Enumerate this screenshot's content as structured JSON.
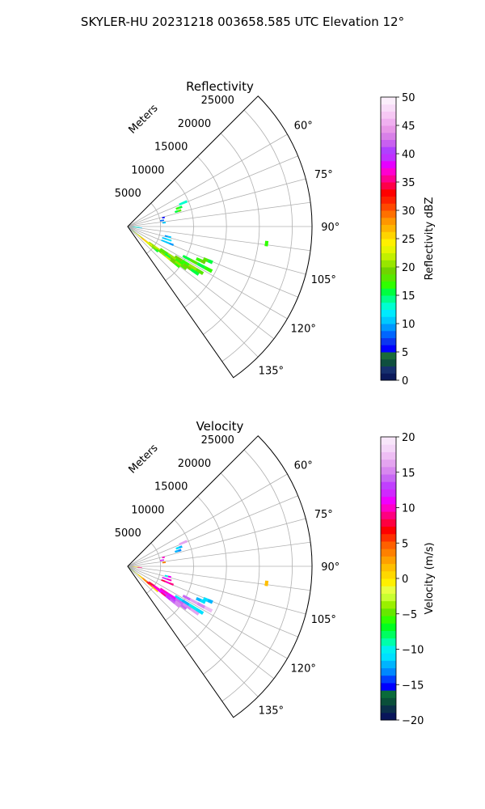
{
  "figure": {
    "suptitle": "SKYLER-HU  20231218  003658.585 UTC Elevation 12°"
  },
  "chart_data": [
    {
      "type": "heatmap",
      "projection": "polar-sector",
      "title": "Reflectivity",
      "radial_label": "Meters",
      "radial_ticks": [
        5000,
        10000,
        15000,
        20000,
        25000
      ],
      "radial_tick_labels": [
        "5000",
        "10000",
        "15000",
        "20000",
        "25000"
      ],
      "radial_range": [
        0,
        28000
      ],
      "azimuth_range_deg": [
        45,
        145
      ],
      "azimuth_ticks": [
        60,
        75,
        90,
        105,
        120,
        135
      ],
      "azimuth_tick_labels": [
        "60°",
        "75°",
        "90°",
        "105°",
        "120°",
        "135°"
      ],
      "grid": true,
      "colorbar": {
        "label": "Reflectivity dBZ",
        "vmin": 0,
        "vmax": 50,
        "ticks": [
          0,
          5,
          10,
          15,
          20,
          25,
          30,
          35,
          40,
          45,
          50
        ],
        "tick_labels": [
          "0",
          "5",
          "10",
          "15",
          "20",
          "25",
          "30",
          "35",
          "40",
          "45",
          "50"
        ]
      },
      "echoes": [
        {
          "az": 130,
          "r": [
            300,
            6000
          ],
          "values": [
            12,
            18,
            22,
            25,
            28,
            25,
            22,
            20,
            18,
            16
          ]
        },
        {
          "az": 128,
          "r": [
            2000,
            10000
          ],
          "values": [
            22,
            26,
            24,
            20,
            18,
            20,
            22,
            19,
            17
          ]
        },
        {
          "az": 126,
          "r": [
            4000,
            11000
          ],
          "values": [
            20,
            22,
            18,
            16,
            19,
            21,
            18
          ]
        },
        {
          "az": 124,
          "r": [
            6000,
            13000
          ],
          "values": [
            18,
            20,
            17,
            19,
            16
          ]
        },
        {
          "az": 122,
          "r": [
            8500,
            13500
          ],
          "values": [
            19,
            17,
            20,
            18
          ]
        },
        {
          "az": 118,
          "r": [
            9500,
            14500
          ],
          "values": [
            16,
            18,
            15,
            17
          ]
        },
        {
          "az": 115,
          "r": [
            11500,
            13000
          ],
          "values": [
            17,
            19
          ]
        },
        {
          "az": 113,
          "r": [
            12500,
            14000
          ],
          "values": [
            18,
            16
          ]
        },
        {
          "az": 112,
          "r": [
            5500,
            7500
          ],
          "values": [
            10,
            11,
            9
          ]
        },
        {
          "az": 108,
          "r": [
            5500,
            7000
          ],
          "values": [
            10,
            12
          ]
        },
        {
          "az": 104,
          "r": [
            5800,
            6800
          ],
          "values": [
            9,
            11
          ]
        },
        {
          "az": 97,
          "r": [
            21000,
            21500
          ],
          "values": [
            17
          ]
        },
        {
          "az": 84,
          "r": [
            5300,
            5800
          ],
          "values": [
            10
          ]
        },
        {
          "az": 80,
          "r": [
            5000,
            5600
          ],
          "values": [
            8
          ]
        },
        {
          "az": 73,
          "r": [
            7500,
            8500
          ],
          "values": [
            16,
            18
          ]
        },
        {
          "az": 70,
          "r": [
            7800,
            8800
          ],
          "values": [
            17,
            16
          ]
        },
        {
          "az": 67,
          "r": [
            8500,
            9800
          ],
          "values": [
            13
          ]
        },
        {
          "az": 76,
          "r": [
            5400,
            5800
          ],
          "values": [
            5
          ]
        },
        {
          "az": 92,
          "r": [
            600,
            1800
          ],
          "values": [
            12,
            13
          ]
        },
        {
          "az": 96,
          "r": [
            800,
            2200
          ],
          "values": [
            13,
            10
          ]
        }
      ]
    },
    {
      "type": "heatmap",
      "projection": "polar-sector",
      "title": "Velocity",
      "radial_label": "Meters",
      "radial_ticks": [
        5000,
        10000,
        15000,
        20000,
        25000
      ],
      "radial_tick_labels": [
        "5000",
        "10000",
        "15000",
        "20000",
        "25000"
      ],
      "radial_range": [
        0,
        28000
      ],
      "azimuth_range_deg": [
        45,
        145
      ],
      "azimuth_ticks": [
        60,
        75,
        90,
        105,
        120,
        135
      ],
      "azimuth_tick_labels": [
        "60°",
        "75°",
        "90°",
        "105°",
        "120°",
        "135°"
      ],
      "grid": true,
      "colorbar": {
        "label": "Velocity (m/s)",
        "vmin": -20,
        "vmax": 20,
        "ticks": [
          -20,
          -15,
          -10,
          -5,
          0,
          5,
          10,
          15,
          20
        ],
        "tick_labels": [
          "−20",
          "−15",
          "−10",
          "−5",
          "0",
          "5",
          "10",
          "15",
          "20"
        ]
      },
      "echoes": [
        {
          "az": 130,
          "r": [
            300,
            6000
          ],
          "values": [
            -6,
            -4,
            -2,
            0,
            2,
            4,
            6,
            3,
            1,
            0
          ]
        },
        {
          "az": 128,
          "r": [
            2000,
            10000
          ],
          "values": [
            0,
            4,
            8,
            10,
            11,
            9,
            12,
            14,
            15
          ]
        },
        {
          "az": 126,
          "r": [
            4000,
            11000
          ],
          "values": [
            8,
            10,
            11,
            12,
            13,
            15,
            14
          ]
        },
        {
          "az": 124,
          "r": [
            6000,
            13000
          ],
          "values": [
            10,
            11,
            14,
            15,
            16
          ]
        },
        {
          "az": 122,
          "r": [
            8500,
            13500
          ],
          "values": [
            -11,
            -12,
            -10,
            -11
          ]
        },
        {
          "az": 118,
          "r": [
            9500,
            14500
          ],
          "values": [
            14,
            16,
            15,
            17
          ]
        },
        {
          "az": 115,
          "r": [
            11500,
            13000
          ],
          "values": [
            -12,
            -11
          ]
        },
        {
          "az": 113,
          "r": [
            12500,
            14000
          ],
          "values": [
            -11,
            -12
          ]
        },
        {
          "az": 112,
          "r": [
            5500,
            7500
          ],
          "values": [
            8,
            10,
            9
          ]
        },
        {
          "az": 108,
          "r": [
            5500,
            7000
          ],
          "values": [
            12,
            10
          ]
        },
        {
          "az": 104,
          "r": [
            5800,
            6800
          ],
          "values": [
            -10,
            11
          ]
        },
        {
          "az": 97,
          "r": [
            21000,
            21500
          ],
          "values": [
            2
          ]
        },
        {
          "az": 84,
          "r": [
            5300,
            5800
          ],
          "values": [
            4
          ]
        },
        {
          "az": 80,
          "r": [
            5000,
            5600
          ],
          "values": [
            12
          ]
        },
        {
          "az": 73,
          "r": [
            7500,
            8500
          ],
          "values": [
            -12,
            -13
          ]
        },
        {
          "az": 70,
          "r": [
            7800,
            8800
          ],
          "values": [
            -11,
            -12
          ]
        },
        {
          "az": 67,
          "r": [
            8500,
            9800
          ],
          "values": [
            16
          ]
        },
        {
          "az": 76,
          "r": [
            5400,
            5800
          ],
          "values": [
            10
          ]
        },
        {
          "az": 92,
          "r": [
            600,
            1800
          ],
          "values": [
            2,
            3
          ]
        },
        {
          "az": 96,
          "r": [
            800,
            2200
          ],
          "values": [
            -2,
            9
          ]
        }
      ]
    }
  ]
}
